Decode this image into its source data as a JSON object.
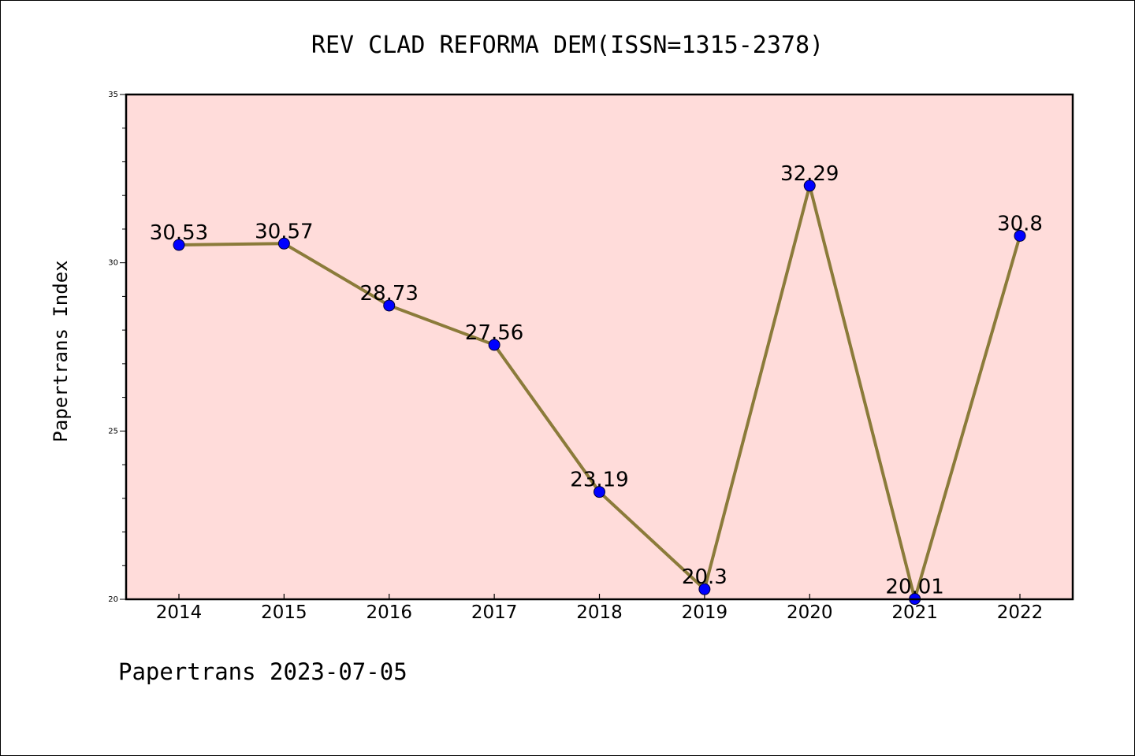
{
  "footer": "Papertrans 2023-07-05",
  "colors": {
    "plot_background": "#FFDCDA",
    "line": "#8B7B3A",
    "marker": "#0000FF",
    "axis": "#000000"
  },
  "chart_data": {
    "type": "line",
    "title": "REV CLAD REFORMA DEM(ISSN=1315-2378)",
    "xlabel": "",
    "ylabel": "Papertrans Index",
    "categories": [
      "2014",
      "2015",
      "2016",
      "2017",
      "2018",
      "2019",
      "2020",
      "2021",
      "2022"
    ],
    "values": [
      30.53,
      30.57,
      28.73,
      27.56,
      23.19,
      20.3,
      32.29,
      20.01,
      30.8
    ],
    "data_labels": [
      "30.53",
      "30.57",
      "28.73",
      "27.56",
      "23.19",
      "20.3",
      "32.29",
      "20.01",
      "30.8"
    ],
    "ylim": [
      20,
      35
    ],
    "yticks": [
      "20",
      "25",
      "30",
      "35"
    ],
    "grid": false,
    "legend": "none"
  }
}
